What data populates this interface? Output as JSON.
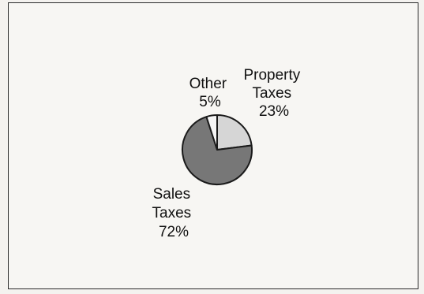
{
  "chart_data": {
    "type": "pie",
    "title": "",
    "slices": [
      {
        "label": [
          "Property",
          "Taxes",
          "23%"
        ],
        "value": 23,
        "color": "#d6d6d6"
      },
      {
        "label": [
          "Sales",
          "Taxes",
          "72%"
        ],
        "value": 72,
        "color": "#777777"
      },
      {
        "label": [
          "Other",
          "5%"
        ],
        "value": 5,
        "color": "#f5f5f5"
      }
    ],
    "start_angle_deg": 0,
    "direction": "clockwise",
    "legend": "none",
    "grid": false
  }
}
